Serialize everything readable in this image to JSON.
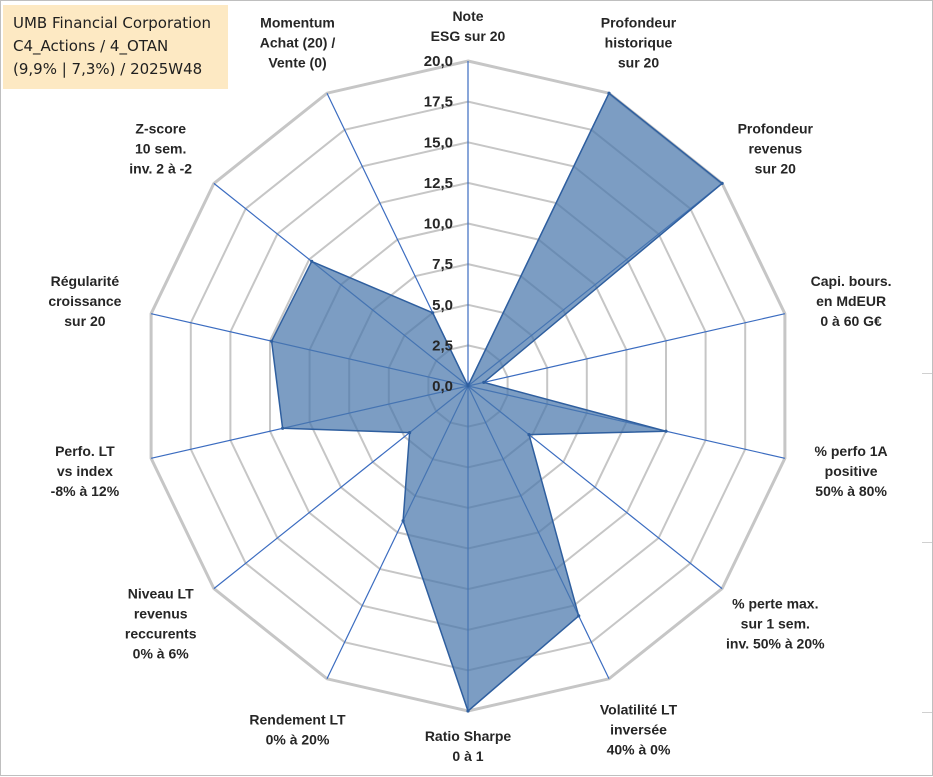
{
  "header": {
    "company": "UMB Financial Corporation",
    "category": "C4_Actions / 4_OTAN",
    "metrics": "(9,9% | 7,3%) / 2025W48"
  },
  "colors": {
    "fill": "#4a77ac",
    "stroke": "#2f5f9f",
    "grid": "#c6c6c6",
    "spoke": "#3b6cc0",
    "header_bg": "#fde9c3"
  },
  "chart_data": {
    "type": "radar",
    "title": "",
    "r_range": [
      0,
      20
    ],
    "tick_labels": [
      "0,0",
      "2,5",
      "5,0",
      "7,5",
      "10,0",
      "12,5",
      "15,0",
      "17,5",
      "20,0"
    ],
    "axes": [
      {
        "lines": [
          "Note",
          "ESG sur 20"
        ]
      },
      {
        "lines": [
          "Profondeur",
          "historique",
          "sur 20"
        ]
      },
      {
        "lines": [
          "Profondeur",
          "revenus",
          "sur 20"
        ]
      },
      {
        "lines": [
          "Capi. bours.",
          "en MdEUR",
          "0 à 60 G€"
        ]
      },
      {
        "lines": [
          "% perfo 1A",
          "positive",
          "50% à 80%"
        ]
      },
      {
        "lines": [
          "% perte max.",
          "sur 1 sem.",
          "inv. 50% à 20%"
        ]
      },
      {
        "lines": [
          "Volatilité LT",
          "inversée",
          "40% à 0%"
        ]
      },
      {
        "lines": [
          "Ratio Sharpe",
          "0 à 1"
        ]
      },
      {
        "lines": [
          "Rendement LT",
          "0% à 20%"
        ]
      },
      {
        "lines": [
          "Niveau LT",
          "revenus",
          "reccurents",
          "0% à 6%"
        ]
      },
      {
        "lines": [
          "Perfo. LT",
          "vs index",
          "-8% à 12%"
        ]
      },
      {
        "lines": [
          "Régularité",
          "croissance",
          "sur 20"
        ]
      },
      {
        "lines": [
          "Z-score",
          "10 sem.",
          "inv. 2 à -2"
        ]
      },
      {
        "lines": [
          "Momentum",
          "Achat (20) /",
          "Vente (0)"
        ]
      }
    ],
    "series": [
      {
        "name": "UMB Financial Corporation",
        "values": [
          0,
          20,
          20,
          1,
          12.5,
          4.8,
          15.7,
          20,
          9.2,
          4.6,
          11.7,
          12.4,
          12.3,
          5.0
        ]
      }
    ]
  }
}
